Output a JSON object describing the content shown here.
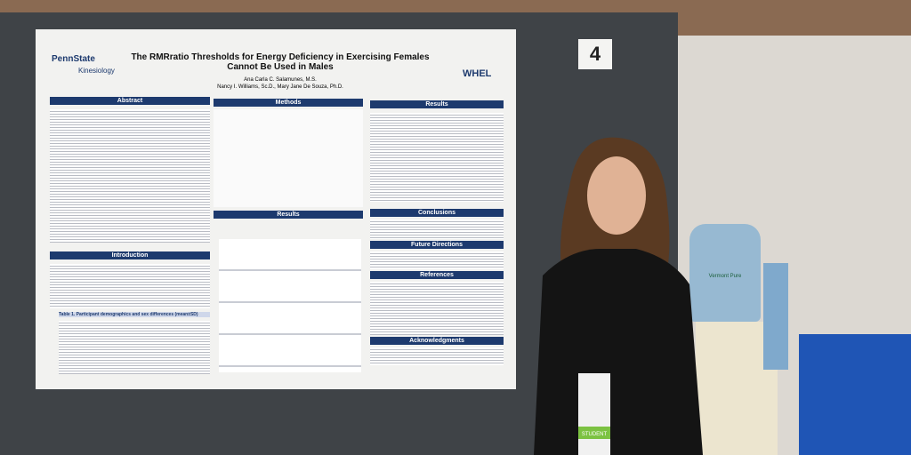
{
  "poster": {
    "logo": "PennState",
    "department": "Kinesiology",
    "lab": "WHEL",
    "title": "The RMRratio Thresholds for Energy Deficiency in Exercising Females Cannot Be Used in Males",
    "authors": [
      "Ana Carla C. Salamunes, M.S.",
      "Nancy I. Williams, Sc.D., Mary Jane De Souza, Ph.D."
    ],
    "sections": [
      "Abstract",
      "Methods",
      "Results",
      "Introduction",
      "Conclusions",
      "Future Directions",
      "References",
      "Acknowledgments"
    ],
    "table_caption": "Table 1. Participant demographics and sex differences (mean±SD)"
  },
  "board_number": "4",
  "water_brand": "Vermont Pure",
  "badge": "STUDENT"
}
